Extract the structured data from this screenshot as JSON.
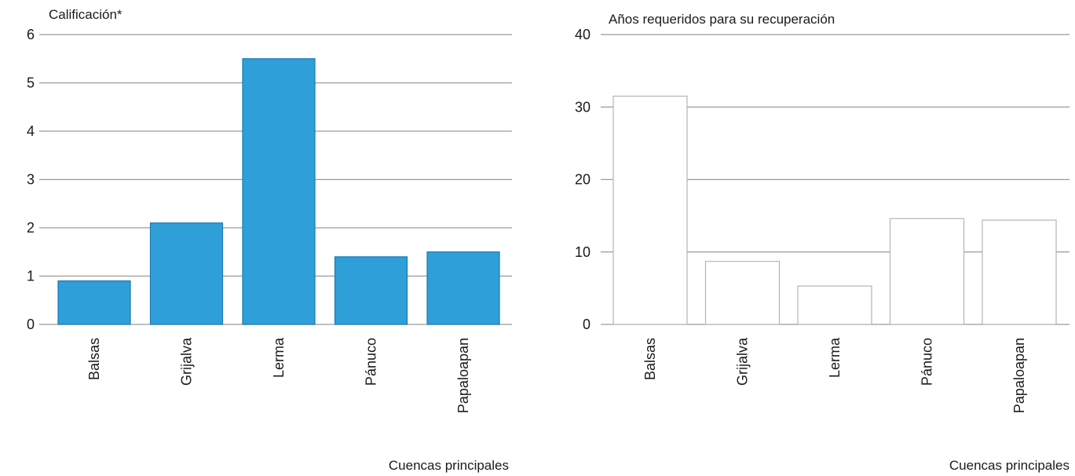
{
  "chart_data": [
    {
      "type": "bar",
      "ylabel": "Calificación*",
      "xlabel": "Cuencas principales",
      "categories": [
        "Balsas",
        "Grijalva",
        "Lerma",
        "Pánuco",
        "Papaloapan"
      ],
      "values": [
        0.9,
        2.1,
        5.5,
        1.4,
        1.5
      ],
      "yticks": [
        "0",
        "1",
        "2",
        "3",
        "4",
        "5",
        "6"
      ],
      "ylim": [
        0,
        6
      ],
      "grid": true,
      "bar_color": "#2e9fd8"
    },
    {
      "type": "bar",
      "ylabel": "Años requeridos para su recuperación",
      "xlabel": "Cuencas principales",
      "categories": [
        "Balsas",
        "Grijalva",
        "Lerma",
        "Pánuco",
        "Papaloapan"
      ],
      "values": [
        31.5,
        8.7,
        5.3,
        14.6,
        14.4
      ],
      "yticks": [
        "0",
        "10",
        "20",
        "30",
        "40"
      ],
      "ylim": [
        0,
        40
      ],
      "grid": true,
      "bar_color": "#ffffff"
    }
  ]
}
